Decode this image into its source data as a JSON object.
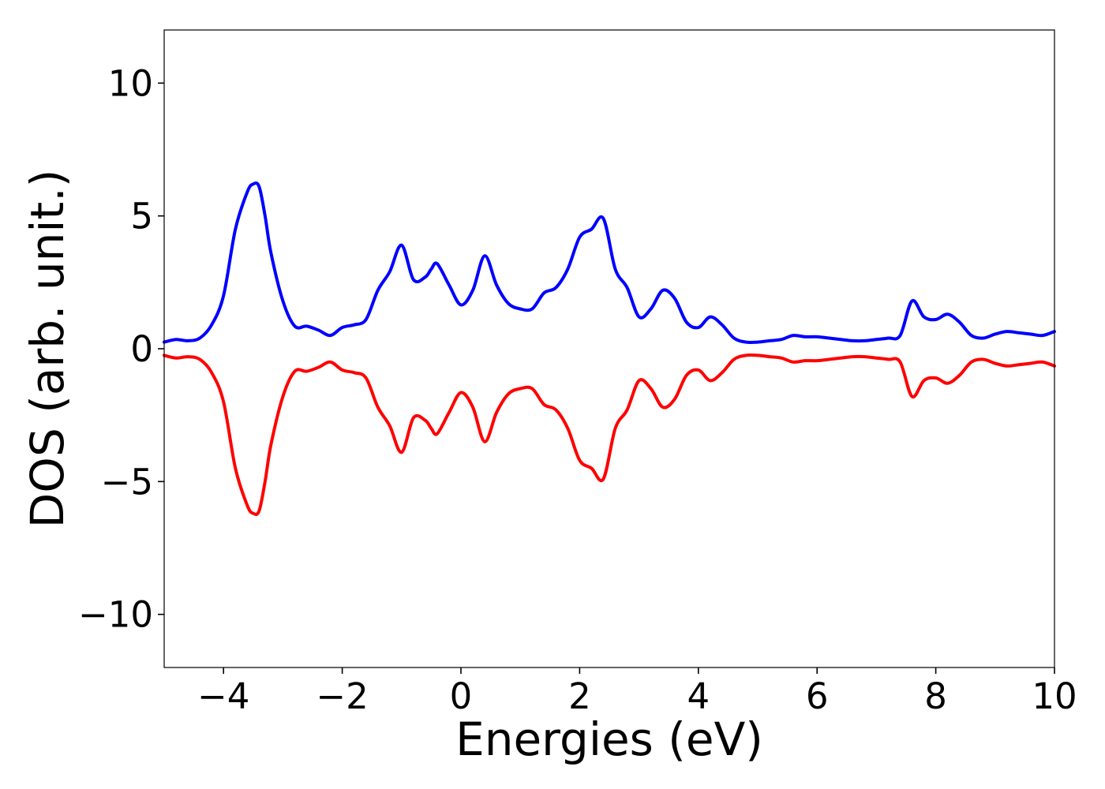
{
  "chart_data": {
    "type": "line",
    "title": "",
    "xlabel": "Energies (eV)",
    "ylabel": "DOS (arb. unit.)",
    "xlim": [
      -5,
      10
    ],
    "ylim": [
      -12,
      12
    ],
    "xticks": [
      -4,
      -2,
      0,
      2,
      4,
      6,
      8,
      10
    ],
    "yticks": [
      -10,
      -5,
      0,
      5,
      10
    ],
    "xtick_labels": [
      "−4",
      "−2",
      "0",
      "2",
      "4",
      "6",
      "8",
      "10"
    ],
    "ytick_labels": [
      "−10",
      "−5",
      "0",
      "5",
      "10"
    ],
    "grid": false,
    "legend": "none",
    "x": [
      -5.0,
      -4.8,
      -4.6,
      -4.4,
      -4.2,
      -4.0,
      -3.8,
      -3.6,
      -3.5,
      -3.4,
      -3.3,
      -3.2,
      -3.0,
      -2.8,
      -2.6,
      -2.4,
      -2.2,
      -2.0,
      -1.8,
      -1.6,
      -1.4,
      -1.2,
      -1.0,
      -0.8,
      -0.6,
      -0.5,
      -0.4,
      -0.2,
      0.0,
      0.2,
      0.4,
      0.6,
      0.8,
      1.0,
      1.2,
      1.4,
      1.6,
      1.8,
      2.0,
      2.2,
      2.4,
      2.6,
      2.8,
      3.0,
      3.2,
      3.4,
      3.6,
      3.8,
      4.0,
      4.2,
      4.4,
      4.6,
      4.8,
      5.0,
      5.2,
      5.4,
      5.6,
      5.8,
      6.0,
      6.2,
      6.4,
      6.6,
      6.8,
      7.0,
      7.2,
      7.4,
      7.6,
      7.8,
      8.0,
      8.2,
      8.4,
      8.6,
      8.8,
      9.0,
      9.2,
      9.4,
      9.6,
      9.8,
      10.0
    ],
    "series": [
      {
        "color": "#0000ff",
        "values": [
          0.25,
          0.35,
          0.3,
          0.4,
          0.9,
          2.0,
          4.5,
          5.9,
          6.2,
          6.1,
          5.0,
          3.6,
          1.8,
          0.85,
          0.85,
          0.7,
          0.5,
          0.8,
          0.9,
          1.1,
          2.2,
          2.9,
          3.9,
          2.6,
          2.7,
          3.0,
          3.2,
          2.4,
          1.65,
          2.2,
          3.5,
          2.4,
          1.7,
          1.5,
          1.5,
          2.1,
          2.3,
          3.0,
          4.2,
          4.5,
          4.9,
          3.0,
          2.3,
          1.2,
          1.5,
          2.2,
          1.9,
          1.0,
          0.8,
          1.2,
          0.9,
          0.4,
          0.25,
          0.25,
          0.3,
          0.35,
          0.5,
          0.45,
          0.45,
          0.4,
          0.35,
          0.3,
          0.3,
          0.35,
          0.4,
          0.5,
          1.8,
          1.2,
          1.1,
          1.3,
          1.0,
          0.5,
          0.4,
          0.55,
          0.65,
          0.6,
          0.55,
          0.5,
          0.65
        ]
      },
      {
        "color": "#ff0000",
        "values": [
          -0.25,
          -0.35,
          -0.3,
          -0.4,
          -0.9,
          -2.0,
          -4.5,
          -5.9,
          -6.2,
          -6.1,
          -5.0,
          -3.6,
          -1.8,
          -0.85,
          -0.85,
          -0.7,
          -0.5,
          -0.8,
          -0.9,
          -1.1,
          -2.2,
          -2.9,
          -3.9,
          -2.6,
          -2.7,
          -3.0,
          -3.2,
          -2.4,
          -1.65,
          -2.2,
          -3.5,
          -2.4,
          -1.7,
          -1.5,
          -1.5,
          -2.1,
          -2.3,
          -3.0,
          -4.2,
          -4.5,
          -4.9,
          -3.0,
          -2.3,
          -1.2,
          -1.5,
          -2.2,
          -1.9,
          -1.0,
          -0.8,
          -1.2,
          -0.9,
          -0.4,
          -0.25,
          -0.25,
          -0.3,
          -0.35,
          -0.5,
          -0.45,
          -0.45,
          -0.4,
          -0.35,
          -0.3,
          -0.3,
          -0.35,
          -0.4,
          -0.5,
          -1.8,
          -1.2,
          -1.1,
          -1.3,
          -1.0,
          -0.5,
          -0.4,
          -0.55,
          -0.65,
          -0.6,
          -0.55,
          -0.5,
          -0.65
        ]
      }
    ]
  }
}
